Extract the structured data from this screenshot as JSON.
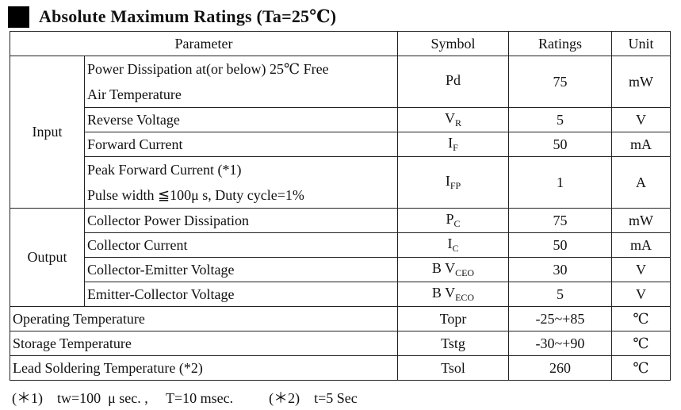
{
  "title": "Absolute Maximum Ratings (Ta=25℃)",
  "headers": {
    "parameter": "Parameter",
    "symbol": "Symbol",
    "ratings": "Ratings",
    "unit": "Unit"
  },
  "groups": {
    "input": "Input",
    "output": "Output"
  },
  "input_rows": [
    {
      "param_line1": "Power Dissipation at(or below) 25℃  Free",
      "param_line2": "Air Temperature",
      "symbol_main": "Pd",
      "symbol_sub": "",
      "rating": "75",
      "unit": "mW"
    },
    {
      "param": "Reverse Voltage",
      "symbol_main": "V",
      "symbol_sub": "R",
      "rating": "5",
      "unit": "V"
    },
    {
      "param": "Forward Current",
      "symbol_main": "I",
      "symbol_sub": "F",
      "rating": "50",
      "unit": "mA"
    },
    {
      "param_line1": "Peak Forward Current (*1)",
      "param_line2": "Pulse width  ≦100μ s, Duty cycle=1%",
      "symbol_main": "I",
      "symbol_sub": "FP",
      "rating": "1",
      "unit": "A"
    }
  ],
  "output_rows": [
    {
      "param": "Collector Power Dissipation",
      "symbol_main": "P",
      "symbol_sub": "C",
      "rating": "75",
      "unit": "mW"
    },
    {
      "param": "Collector Current",
      "symbol_main": "I",
      "symbol_sub": "C",
      "rating": "50",
      "unit": "mA"
    },
    {
      "param": "Collector-Emitter Voltage",
      "symbol_main": "B V",
      "symbol_sub": "CEO",
      "rating": "30",
      "unit": "V"
    },
    {
      "param": "Emitter-Collector Voltage",
      "symbol_main": "B V",
      "symbol_sub": "ECO",
      "rating": "5",
      "unit": "V"
    }
  ],
  "other_rows": [
    {
      "param": "Operating Temperature",
      "symbol": "Topr",
      "rating": "-25~+85",
      "unit": "℃"
    },
    {
      "param": "Storage Temperature",
      "symbol": "Tstg",
      "rating": "-30~+90",
      "unit": "℃"
    },
    {
      "param": "Lead Soldering Temperature (*2)",
      "symbol": "Tsol",
      "rating": "260",
      "unit": "℃"
    }
  ],
  "notes": "(＊1)    tw=100  μ sec. ,     T=10 msec.          (＊2)    t=5 Sec"
}
